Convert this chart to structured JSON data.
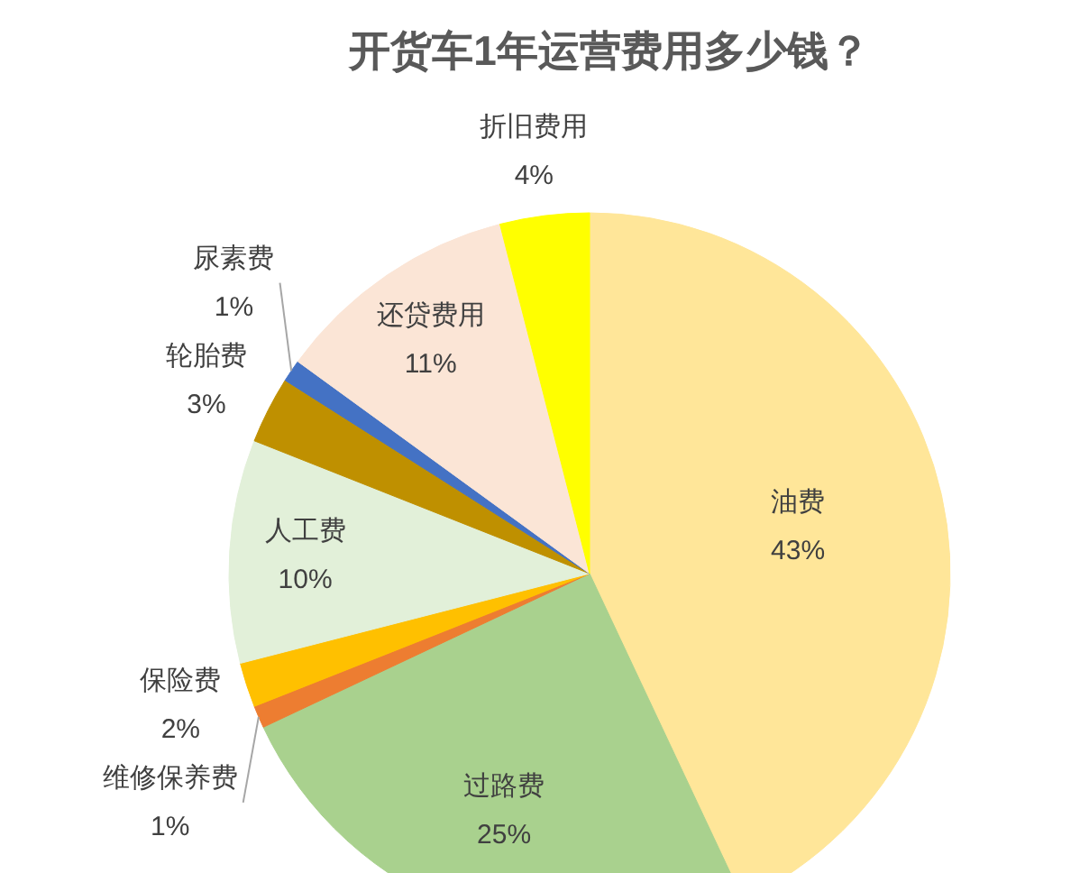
{
  "chart_data": {
    "type": "pie",
    "title": "开货车1年运营费用多少钱？",
    "categories": [
      "油费",
      "过路费",
      "维修保养费",
      "保险费",
      "人工费",
      "轮胎费",
      "尿素费",
      "还贷费用",
      "折旧费用"
    ],
    "values": [
      43,
      25,
      1,
      2,
      10,
      3,
      1,
      11,
      4
    ],
    "colors": [
      "#ffe699",
      "#a9d18e",
      "#ed7d31",
      "#ffc000",
      "#e2f0d9",
      "#bf9000",
      "#4472c4",
      "#fbe5d6",
      "#ffff00"
    ],
    "value_labels": [
      "43%",
      "25%",
      "1%",
      "2%",
      "10%",
      "3%",
      "1%",
      "11%",
      "4%"
    ]
  }
}
